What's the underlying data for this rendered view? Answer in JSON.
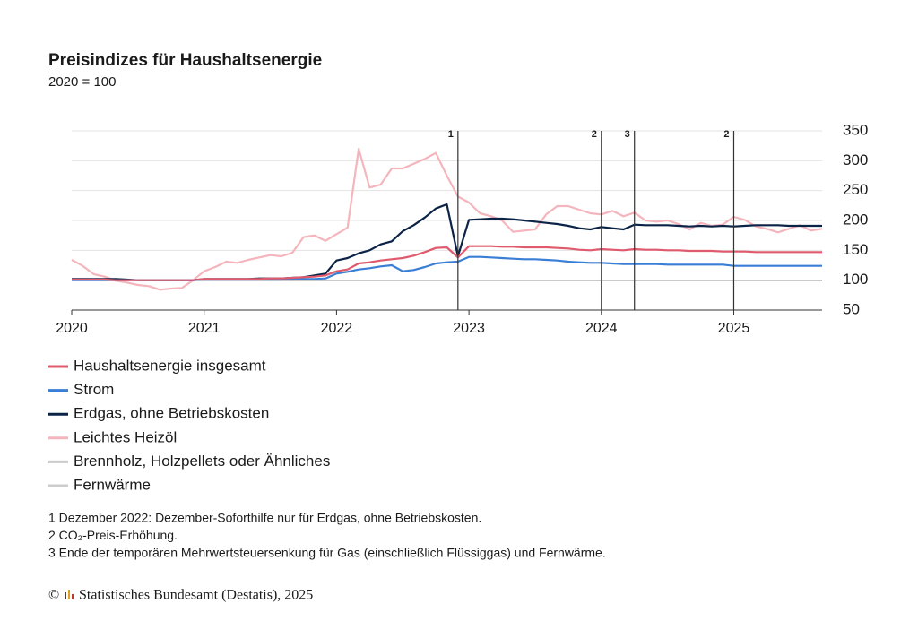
{
  "chart_data": {
    "type": "line",
    "title": "Preisindizes für Haushaltsenergie",
    "subtitle": "2020 = 100",
    "x": [
      2020,
      2020.083,
      2020.167,
      2020.25,
      2020.333,
      2020.417,
      2020.5,
      2020.583,
      2020.667,
      2020.75,
      2020.833,
      2020.917,
      2021,
      2021.083,
      2021.167,
      2021.25,
      2021.333,
      2021.417,
      2021.5,
      2021.583,
      2021.667,
      2021.75,
      2021.833,
      2021.917,
      2022,
      2022.083,
      2022.167,
      2022.25,
      2022.333,
      2022.417,
      2022.5,
      2022.583,
      2022.667,
      2022.75,
      2022.833,
      2022.917,
      2023,
      2023.083,
      2023.167,
      2023.25,
      2023.333,
      2023.417,
      2023.5,
      2023.583,
      2023.667,
      2023.75,
      2023.833,
      2023.917,
      2024,
      2024.083,
      2024.167,
      2024.25,
      2024.333,
      2024.417,
      2024.5,
      2024.583,
      2024.667,
      2024.75,
      2024.833,
      2024.917,
      2025,
      2025.083,
      2025.167,
      2025.25,
      2025.333,
      2025.417,
      2025.5,
      2025.583,
      2025.667
    ],
    "series": [
      {
        "name": "Haushaltsenergie insgesamt",
        "color": "#e05a6e",
        "values": [
          101,
          101,
          101,
          101,
          100,
          100,
          100,
          100,
          100,
          100,
          100,
          100,
          102,
          102,
          102,
          102,
          102,
          102,
          103,
          103,
          104,
          105,
          106,
          108,
          115,
          118,
          128,
          130,
          133,
          135,
          137,
          141,
          147,
          154,
          155,
          138,
          157,
          157,
          157,
          156,
          156,
          155,
          155,
          155,
          154,
          153,
          151,
          150,
          152,
          151,
          150,
          152,
          151,
          151,
          150,
          150,
          149,
          149,
          149,
          148,
          148,
          148,
          147,
          147,
          147,
          147,
          147,
          147,
          147
        ]
      },
      {
        "name": "Strom",
        "color": "#3a7fd5",
        "values": [
          100,
          100,
          100,
          100,
          100,
          100,
          100,
          100,
          100,
          100,
          100,
          100,
          101,
          101,
          101,
          101,
          101,
          101,
          101,
          101,
          102,
          102,
          102,
          103,
          111,
          114,
          118,
          120,
          123,
          125,
          115,
          117,
          122,
          128,
          130,
          131,
          139,
          139,
          138,
          137,
          136,
          135,
          135,
          134,
          133,
          131,
          130,
          129,
          129,
          128,
          127,
          127,
          127,
          127,
          126,
          126,
          126,
          126,
          126,
          126,
          124,
          124,
          124,
          124,
          124,
          124,
          124,
          124,
          124
        ]
      },
      {
        "name": "Erdgas, ohne Betriebskosten",
        "color": "#0b2346",
        "values": [
          102,
          102,
          102,
          102,
          102,
          101,
          100,
          100,
          100,
          100,
          100,
          100,
          102,
          102,
          102,
          102,
          102,
          103,
          103,
          103,
          104,
          105,
          108,
          111,
          133,
          137,
          145,
          150,
          160,
          165,
          182,
          192,
          205,
          220,
          227,
          140,
          201,
          202,
          203,
          203,
          202,
          200,
          198,
          196,
          194,
          191,
          187,
          185,
          189,
          187,
          185,
          193,
          192,
          192,
          192,
          191,
          190,
          191,
          190,
          191,
          190,
          191,
          192,
          192,
          192,
          191,
          191,
          191,
          191
        ]
      },
      {
        "name": "Leichtes Heizöl",
        "color": "#f4b5bc",
        "values": [
          134,
          124,
          110,
          106,
          99,
          96,
          92,
          90,
          84,
          86,
          87,
          100,
          115,
          122,
          131,
          129,
          134,
          138,
          142,
          140,
          146,
          172,
          175,
          166,
          177,
          188,
          320,
          255,
          260,
          287,
          287,
          295,
          303,
          313,
          275,
          240,
          230,
          212,
          207,
          200,
          181,
          183,
          185,
          210,
          224,
          224,
          218,
          212,
          210,
          216,
          207,
          213,
          200,
          198,
          200,
          194,
          185,
          196,
          191,
          193,
          206,
          201,
          190,
          186,
          180,
          186,
          192,
          183,
          186
        ]
      }
    ],
    "inactive_series": [
      {
        "name": "Brennholz, Holzpellets oder Ähnliches",
        "color": "#cccccc"
      },
      {
        "name": "Fernwärme",
        "color": "#cccccc"
      }
    ],
    "xlim": [
      2020,
      2025.667
    ],
    "xticks": [
      2020,
      2021,
      2022,
      2023,
      2024,
      2025
    ],
    "ylim": [
      50,
      350
    ],
    "yticks": [
      50,
      100,
      150,
      200,
      250,
      300,
      350
    ],
    "baseline": 100,
    "grid": true,
    "annotations": [
      {
        "x": 2022.917,
        "label": "1"
      },
      {
        "x": 2024,
        "label": "2"
      },
      {
        "x": 2024.25,
        "label": "3"
      },
      {
        "x": 2025,
        "label": "2"
      }
    ],
    "footnotes": [
      "1 Dezember 2022: Dezember-Soforthilfe nur für Erdgas, ohne Betriebskosten.",
      "2 CO₂-Preis-Erhöhung.",
      "3 Ende der temporären Mehrwertsteuersenkung für Gas (einschließlich Flüssiggas) und Fernwärme."
    ],
    "copyright": "©",
    "source": "Statistisches Bundesamt (Destatis), 2025"
  }
}
